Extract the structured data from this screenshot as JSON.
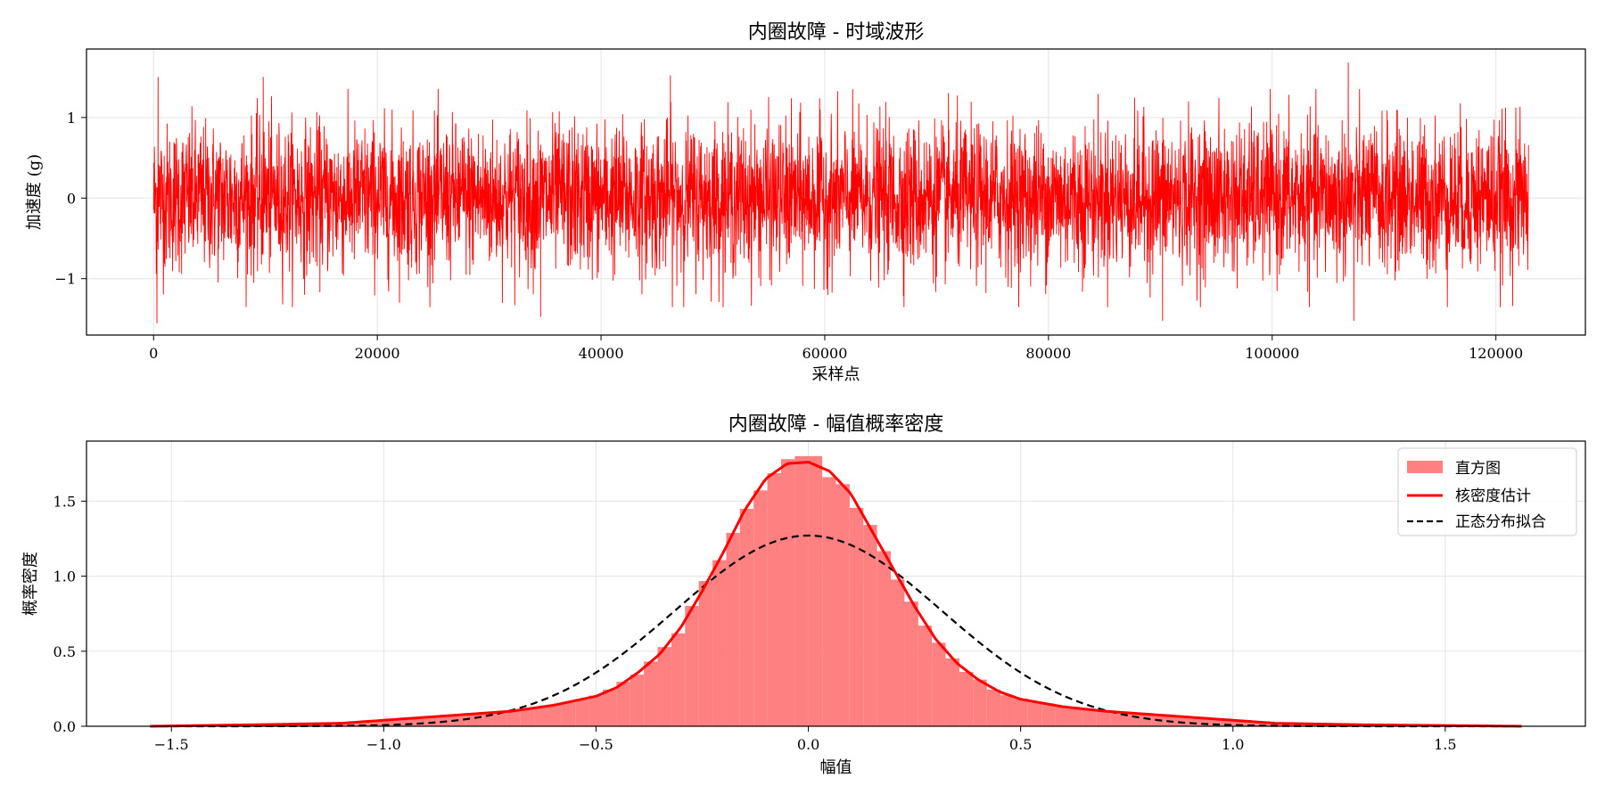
{
  "chart_data": [
    {
      "type": "line",
      "title": "内圈故障 - 时域波形",
      "xlabel": "采样点",
      "ylabel": "加速度 (g)",
      "xlim": [
        -6000,
        128000
      ],
      "ylim": [
        -1.7,
        1.85
      ],
      "xticks": [
        0,
        20000,
        40000,
        60000,
        80000,
        100000,
        120000
      ],
      "xtick_labels": [
        "0",
        "20000",
        "40000",
        "60000",
        "80000",
        "100000",
        "120000"
      ],
      "yticks": [
        -1,
        0,
        1
      ],
      "ytick_labels": [
        "−1",
        "0",
        "1"
      ],
      "grid": true,
      "series": [
        {
          "color": "#ff0000",
          "n_points": 122917,
          "x_range": [
            0,
            122917
          ],
          "typical_peak_envelope": [
            -1.0,
            1.0
          ],
          "sample_extremes": [
            {
              "x": 400,
              "y": 1.5
            },
            {
              "x": 300,
              "y": -1.55
            },
            {
              "x": 9800,
              "y": 1.5
            },
            {
              "x": 34600,
              "y": -1.47
            },
            {
              "x": 46200,
              "y": 1.52
            },
            {
              "x": 90200,
              "y": -1.52
            },
            {
              "x": 106800,
              "y": 1.68
            },
            {
              "x": 107300,
              "y": -1.52
            }
          ]
        }
      ]
    },
    {
      "type": "histogram",
      "title": "内圈故障 - 幅值概率密度",
      "xlabel": "幅值",
      "ylabel": "概率密度",
      "xlim": [
        -1.7,
        1.83
      ],
      "ylim": [
        0,
        1.9
      ],
      "xticks": [
        -1.5,
        -1.0,
        -0.5,
        0.0,
        0.5,
        1.0,
        1.5
      ],
      "xtick_labels": [
        "−1.5",
        "−1.0",
        "−0.5",
        "0.0",
        "0.5",
        "1.0",
        "1.5"
      ],
      "yticks": [
        0.0,
        0.5,
        1.0,
        1.5
      ],
      "ytick_labels": [
        "0.0",
        "0.5",
        "1.0",
        "1.5"
      ],
      "grid": true,
      "legend_position": "top-right",
      "histogram": {
        "name": "直方图",
        "color": "#ff8080",
        "bin_range": [
          -1.55,
          1.68
        ],
        "bin_count": 100,
        "peak_density": 1.8
      },
      "series": [
        {
          "name": "核密度估计",
          "color": "#ff0000",
          "style": "solid",
          "x": [
            -1.55,
            -1.3,
            -1.1,
            -1.0,
            -0.9,
            -0.8,
            -0.7,
            -0.6,
            -0.5,
            -0.45,
            -0.4,
            -0.35,
            -0.3,
            -0.25,
            -0.2,
            -0.15,
            -0.1,
            -0.05,
            0.0,
            0.05,
            0.1,
            0.15,
            0.2,
            0.25,
            0.3,
            0.35,
            0.4,
            0.45,
            0.5,
            0.6,
            0.7,
            0.8,
            0.9,
            1.0,
            1.1,
            1.3,
            1.68
          ],
          "y": [
            0.0,
            0.01,
            0.02,
            0.04,
            0.06,
            0.08,
            0.1,
            0.14,
            0.2,
            0.26,
            0.36,
            0.48,
            0.66,
            0.9,
            1.16,
            1.44,
            1.65,
            1.75,
            1.76,
            1.7,
            1.55,
            1.3,
            1.05,
            0.8,
            0.58,
            0.42,
            0.31,
            0.23,
            0.18,
            0.13,
            0.1,
            0.08,
            0.06,
            0.04,
            0.02,
            0.01,
            0.0
          ]
        },
        {
          "name": "正态分布拟合",
          "color": "#000000",
          "style": "dashed",
          "mean": 0.0,
          "std": 0.314,
          "peak_density": 1.27
        }
      ]
    }
  ],
  "colors": {
    "signal": "#ff0000",
    "histogram": "#ff8080",
    "kde": "#ff0000",
    "normal_fit": "#000000",
    "grid": "#e3e3e3"
  }
}
